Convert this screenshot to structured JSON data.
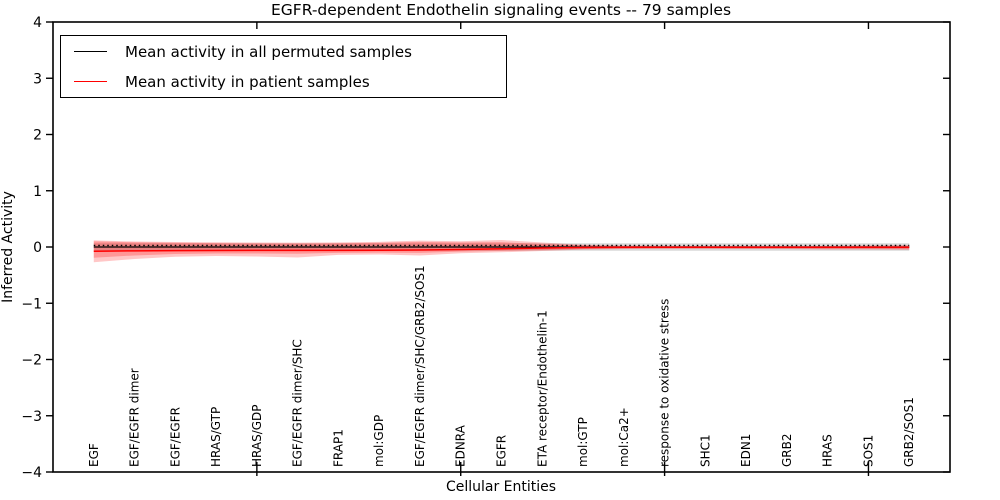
{
  "chart_data": {
    "type": "line",
    "title": "EGFR-dependent Endothelin signaling events -- 79 samples",
    "xlabel": "Cellular Entities",
    "ylabel": "Inferred Activity",
    "ylim": [
      -4,
      4
    ],
    "yticks": [
      4,
      3,
      2,
      1,
      0,
      -1,
      -2,
      -3,
      -4
    ],
    "xlim": [
      0,
      22
    ],
    "xtick_positions": [
      5,
      10,
      15,
      20
    ],
    "grid": false,
    "legend_position": "upper left",
    "categories": [
      "EGF",
      "EGF/EGFR dimer",
      "EGF/EGFR",
      "HRAS/GTP",
      "HRAS/GDP",
      "EGF/EGFR dimer/SHC",
      "FRAP1",
      "mol:GDP",
      "EGF/EGFR dimer/SHC/GRB2/SOS1",
      "EDNRA",
      "EGFR",
      "ETA receptor/Endothelin-1",
      "mol:GTP",
      "mol:Ca2+",
      "response to oxidative stress",
      "SHC1",
      "EDN1",
      "GRB2",
      "HRAS",
      "SOS1",
      "GRB2/SOS1"
    ],
    "series": [
      {
        "name": "Mean activity in all permuted samples",
        "color": "#000000",
        "style": "solid",
        "values": [
          0,
          0,
          0,
          0,
          0,
          0,
          0,
          0,
          0,
          0,
          0,
          0,
          0,
          0,
          0,
          0,
          0,
          0,
          0,
          0,
          0
        ]
      },
      {
        "name": "Mean activity in patient samples",
        "color": "#ff0000",
        "style": "solid",
        "values": [
          -0.076,
          -0.068,
          -0.064,
          -0.062,
          -0.06,
          -0.06,
          -0.059,
          -0.057,
          -0.053,
          -0.044,
          -0.032,
          -0.018,
          -0.009,
          -0.005,
          -0.005,
          -0.005,
          -0.005,
          -0.005,
          -0.005,
          -0.005,
          -0.005
        ]
      }
    ],
    "dotted_reference_line": {
      "value": 0.028,
      "color": "#000000",
      "style": "dotted"
    },
    "bands": [
      {
        "name": "permuted-samples-std-band",
        "color": "#aaaaaa",
        "opacity": 0.45,
        "upper": [
          0.067,
          0.067,
          0.067,
          0.067,
          0.067,
          0.067,
          0.067,
          0.067,
          0.067,
          0.067,
          0.067,
          0.067,
          0.067,
          0.067,
          0.067,
          0.067,
          0.067,
          0.067,
          0.067,
          0.067,
          0.067
        ],
        "lower": [
          -0.067,
          -0.067,
          -0.067,
          -0.067,
          -0.067,
          -0.067,
          -0.067,
          -0.067,
          -0.067,
          -0.067,
          -0.067,
          -0.067,
          -0.067,
          -0.067,
          -0.067,
          -0.067,
          -0.067,
          -0.067,
          -0.067,
          -0.067,
          -0.067
        ]
      },
      {
        "name": "patient-samples-outer-band",
        "color": "#ff0000",
        "opacity": 0.22,
        "upper": [
          0.117,
          0.098,
          0.089,
          0.084,
          0.08,
          0.078,
          0.082,
          0.092,
          0.114,
          0.103,
          0.124,
          0.08,
          0.039,
          0.025,
          0.02,
          0.018,
          0.018,
          0.018,
          0.018,
          0.027,
          0.032
        ],
        "lower": [
          -0.272,
          -0.213,
          -0.174,
          -0.16,
          -0.169,
          -0.187,
          -0.139,
          -0.133,
          -0.151,
          -0.112,
          -0.094,
          -0.071,
          -0.046,
          -0.036,
          -0.032,
          -0.032,
          -0.036,
          -0.036,
          -0.044,
          -0.044,
          -0.05
        ]
      },
      {
        "name": "patient-samples-inner-band",
        "color": "#ff0000",
        "opacity": 0.24,
        "upper": [
          0.1,
          0.085,
          0.075,
          0.068,
          0.065,
          0.062,
          0.066,
          0.075,
          0.092,
          0.083,
          0.086,
          0.055,
          0.028,
          0.018,
          0.015,
          0.013,
          0.013,
          0.013,
          0.013,
          0.02,
          0.024
        ],
        "lower": [
          -0.19,
          -0.15,
          -0.125,
          -0.115,
          -0.115,
          -0.12,
          -0.105,
          -0.1,
          -0.105,
          -0.082,
          -0.068,
          -0.053,
          -0.036,
          -0.028,
          -0.026,
          -0.026,
          -0.028,
          -0.028,
          -0.034,
          -0.034,
          -0.038
        ]
      }
    ]
  }
}
